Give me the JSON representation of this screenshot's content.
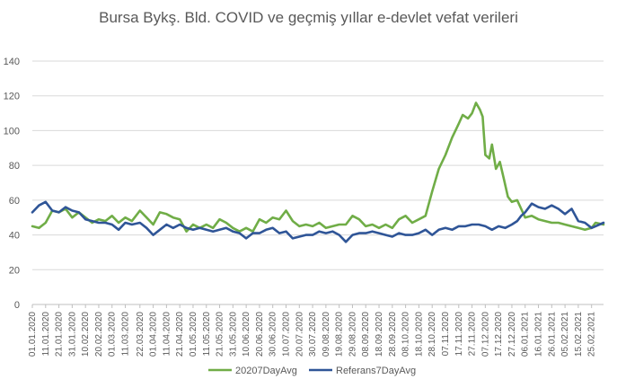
{
  "chart_data": {
    "type": "line",
    "title": "Bursa Bykş. Bld. COVID ve geçmiş yıllar e-devlet vefat verileri",
    "xlabel": "",
    "ylabel": "",
    "ylim": [
      0,
      140
    ],
    "yticks": [
      0,
      20,
      40,
      60,
      80,
      100,
      120,
      140
    ],
    "grid": true,
    "legend_position": "bottom",
    "x_start": "01.01.2020",
    "x_end": "06.03.2021",
    "tick_labels": [
      "01.01.2020",
      "11.01.2020",
      "21.01.2020",
      "31.01.2020",
      "10.02.2020",
      "20.02.2020",
      "01.03.2020",
      "11.03.2020",
      "22.03.2020",
      "01.04.2020",
      "11.04.2020",
      "21.04.2020",
      "01.05.2020",
      "11.05.2020",
      "21.05.2020",
      "31.05.2020",
      "10.06.2020",
      "20.06.2020",
      "30.06.2020",
      "10.07.2020",
      "20.07.2020",
      "30.07.2020",
      "09.08.2020",
      "19.08.2020",
      "29.08.2020",
      "08.09.2020",
      "18.09.2020",
      "28.09.2020",
      "08.10.2020",
      "18.10.2020",
      "28.10.2020",
      "07.11.2020",
      "17.11.2020",
      "27.11.2020",
      "07.12.2020",
      "17.12.2020",
      "27.12.2020",
      "06.01.2021",
      "16.01.2021",
      "26.01.2021",
      "05.02.2021",
      "15.02.2021",
      "25.02.2021"
    ],
    "series": [
      {
        "name": "20207DayAvg",
        "color": "#70AD47",
        "points": [
          [
            "01.01.2020",
            45
          ],
          [
            "06.01.2020",
            44
          ],
          [
            "11.01.2020",
            47
          ],
          [
            "16.01.2020",
            54
          ],
          [
            "21.01.2020",
            53
          ],
          [
            "26.01.2020",
            55
          ],
          [
            "31.01.2020",
            50
          ],
          [
            "05.02.2020",
            53
          ],
          [
            "10.02.2020",
            50
          ],
          [
            "15.02.2020",
            47
          ],
          [
            "20.02.2020",
            49
          ],
          [
            "25.02.2020",
            48
          ],
          [
            "01.03.2020",
            51
          ],
          [
            "06.03.2020",
            47
          ],
          [
            "11.03.2020",
            50
          ],
          [
            "16.03.2020",
            48
          ],
          [
            "22.03.2020",
            54
          ],
          [
            "27.03.2020",
            50
          ],
          [
            "01.04.2020",
            46
          ],
          [
            "06.04.2020",
            53
          ],
          [
            "11.04.2020",
            52
          ],
          [
            "16.04.2020",
            50
          ],
          [
            "21.04.2020",
            49
          ],
          [
            "26.04.2020",
            42
          ],
          [
            "01.05.2020",
            46
          ],
          [
            "06.05.2020",
            44
          ],
          [
            "11.05.2020",
            46
          ],
          [
            "16.05.2020",
            44
          ],
          [
            "21.05.2020",
            49
          ],
          [
            "26.05.2020",
            47
          ],
          [
            "31.05.2020",
            44
          ],
          [
            "05.06.2020",
            42
          ],
          [
            "10.06.2020",
            44
          ],
          [
            "15.06.2020",
            42
          ],
          [
            "20.06.2020",
            49
          ],
          [
            "25.06.2020",
            47
          ],
          [
            "30.06.2020",
            50
          ],
          [
            "05.07.2020",
            49
          ],
          [
            "10.07.2020",
            54
          ],
          [
            "15.07.2020",
            48
          ],
          [
            "20.07.2020",
            45
          ],
          [
            "25.07.2020",
            46
          ],
          [
            "30.07.2020",
            45
          ],
          [
            "04.08.2020",
            47
          ],
          [
            "09.08.2020",
            44
          ],
          [
            "14.08.2020",
            45
          ],
          [
            "19.08.2020",
            46
          ],
          [
            "24.08.2020",
            46
          ],
          [
            "29.08.2020",
            51
          ],
          [
            "03.09.2020",
            49
          ],
          [
            "08.09.2020",
            45
          ],
          [
            "13.09.2020",
            46
          ],
          [
            "18.09.2020",
            44
          ],
          [
            "23.09.2020",
            46
          ],
          [
            "28.09.2020",
            44
          ],
          [
            "03.10.2020",
            49
          ],
          [
            "08.10.2020",
            51
          ],
          [
            "13.10.2020",
            47
          ],
          [
            "18.10.2020",
            49
          ],
          [
            "23.10.2020",
            51
          ],
          [
            "28.10.2020",
            65
          ],
          [
            "02.11.2020",
            78
          ],
          [
            "07.11.2020",
            86
          ],
          [
            "12.11.2020",
            96
          ],
          [
            "17.11.2020",
            104
          ],
          [
            "20.11.2020",
            109
          ],
          [
            "24.11.2020",
            107
          ],
          [
            "27.11.2020",
            110
          ],
          [
            "30.11.2020",
            116
          ],
          [
            "03.12.2020",
            112
          ],
          [
            "05.12.2020",
            108
          ],
          [
            "07.12.2020",
            86
          ],
          [
            "10.12.2020",
            84
          ],
          [
            "12.12.2020",
            92
          ],
          [
            "15.12.2020",
            78
          ],
          [
            "18.12.2020",
            82
          ],
          [
            "21.12.2020",
            72
          ],
          [
            "24.12.2020",
            62
          ],
          [
            "27.12.2020",
            59
          ],
          [
            "31.12.2020",
            60
          ],
          [
            "03.01.2021",
            55
          ],
          [
            "06.01.2021",
            50
          ],
          [
            "11.01.2021",
            51
          ],
          [
            "16.01.2021",
            49
          ],
          [
            "21.01.2021",
            48
          ],
          [
            "26.01.2021",
            47
          ],
          [
            "31.01.2021",
            47
          ],
          [
            "05.02.2021",
            46
          ],
          [
            "10.02.2021",
            45
          ],
          [
            "15.02.2021",
            44
          ],
          [
            "20.02.2021",
            43
          ],
          [
            "25.02.2021",
            44
          ],
          [
            "28.02.2021",
            47
          ],
          [
            "06.03.2021",
            46
          ]
        ]
      },
      {
        "name": "Referans7DayAvg",
        "color": "#2F5597",
        "points": [
          [
            "01.01.2020",
            53
          ],
          [
            "06.01.2020",
            57
          ],
          [
            "11.01.2020",
            59
          ],
          [
            "16.01.2020",
            54
          ],
          [
            "21.01.2020",
            53
          ],
          [
            "26.01.2020",
            56
          ],
          [
            "31.01.2020",
            54
          ],
          [
            "05.02.2020",
            53
          ],
          [
            "10.02.2020",
            49
          ],
          [
            "15.02.2020",
            48
          ],
          [
            "20.02.2020",
            47
          ],
          [
            "25.02.2020",
            47
          ],
          [
            "01.03.2020",
            46
          ],
          [
            "06.03.2020",
            43
          ],
          [
            "11.03.2020",
            47
          ],
          [
            "16.03.2020",
            46
          ],
          [
            "22.03.2020",
            47
          ],
          [
            "27.03.2020",
            44
          ],
          [
            "01.04.2020",
            40
          ],
          [
            "06.04.2020",
            43
          ],
          [
            "11.04.2020",
            46
          ],
          [
            "16.04.2020",
            44
          ],
          [
            "21.04.2020",
            46
          ],
          [
            "26.04.2020",
            44
          ],
          [
            "01.05.2020",
            43
          ],
          [
            "06.05.2020",
            44
          ],
          [
            "11.05.2020",
            43
          ],
          [
            "16.05.2020",
            42
          ],
          [
            "21.05.2020",
            43
          ],
          [
            "26.05.2020",
            44
          ],
          [
            "31.05.2020",
            42
          ],
          [
            "05.06.2020",
            41
          ],
          [
            "10.06.2020",
            38
          ],
          [
            "15.06.2020",
            41
          ],
          [
            "20.06.2020",
            41
          ],
          [
            "25.06.2020",
            43
          ],
          [
            "30.06.2020",
            44
          ],
          [
            "05.07.2020",
            41
          ],
          [
            "10.07.2020",
            42
          ],
          [
            "15.07.2020",
            38
          ],
          [
            "20.07.2020",
            39
          ],
          [
            "25.07.2020",
            40
          ],
          [
            "30.07.2020",
            40
          ],
          [
            "04.08.2020",
            42
          ],
          [
            "09.08.2020",
            41
          ],
          [
            "14.08.2020",
            42
          ],
          [
            "19.08.2020",
            40
          ],
          [
            "24.08.2020",
            36
          ],
          [
            "29.08.2020",
            40
          ],
          [
            "03.09.2020",
            41
          ],
          [
            "08.09.2020",
            41
          ],
          [
            "13.09.2020",
            42
          ],
          [
            "18.09.2020",
            41
          ],
          [
            "23.09.2020",
            40
          ],
          [
            "28.09.2020",
            39
          ],
          [
            "03.10.2020",
            41
          ],
          [
            "08.10.2020",
            40
          ],
          [
            "13.10.2020",
            40
          ],
          [
            "18.10.2020",
            41
          ],
          [
            "23.10.2020",
            43
          ],
          [
            "28.10.2020",
            40
          ],
          [
            "02.11.2020",
            43
          ],
          [
            "07.11.2020",
            44
          ],
          [
            "12.11.2020",
            43
          ],
          [
            "17.11.2020",
            45
          ],
          [
            "22.11.2020",
            45
          ],
          [
            "27.11.2020",
            46
          ],
          [
            "02.12.2020",
            46
          ],
          [
            "07.12.2020",
            45
          ],
          [
            "12.12.2020",
            43
          ],
          [
            "17.12.2020",
            45
          ],
          [
            "22.12.2020",
            44
          ],
          [
            "27.12.2020",
            46
          ],
          [
            "31.12.2020",
            48
          ],
          [
            "03.01.2021",
            51
          ],
          [
            "06.01.2021",
            53
          ],
          [
            "11.01.2021",
            58
          ],
          [
            "16.01.2021",
            56
          ],
          [
            "21.01.2021",
            55
          ],
          [
            "26.01.2021",
            57
          ],
          [
            "31.01.2021",
            55
          ],
          [
            "05.02.2021",
            52
          ],
          [
            "10.02.2021",
            55
          ],
          [
            "15.02.2021",
            48
          ],
          [
            "20.02.2021",
            47
          ],
          [
            "25.02.2021",
            44
          ],
          [
            "28.02.2021",
            45
          ],
          [
            "06.03.2021",
            47
          ]
        ]
      }
    ]
  }
}
